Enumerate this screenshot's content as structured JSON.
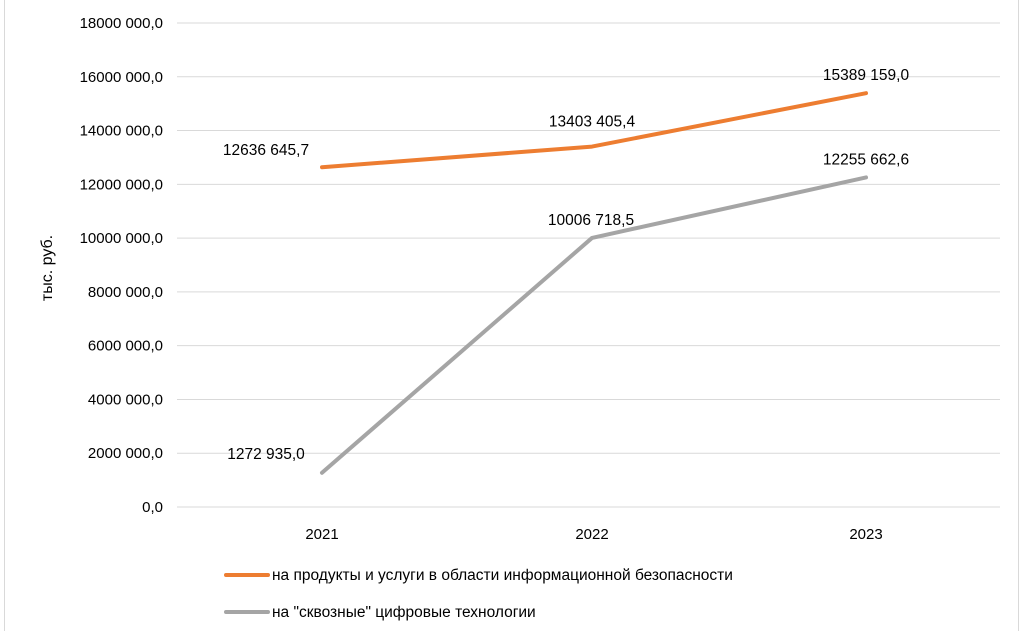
{
  "chart_data": {
    "type": "line",
    "title": "",
    "ylabel": "тыс. руб.",
    "xlabel": "",
    "categories": [
      "2021",
      "2022",
      "2023"
    ],
    "ylim": [
      0,
      18000000
    ],
    "yticks": [
      0,
      2000000,
      4000000,
      6000000,
      8000000,
      10000000,
      12000000,
      14000000,
      16000000,
      18000000
    ],
    "ytick_labels": [
      "0,0",
      "2000 000,0",
      "4000 000,0",
      "6000 000,0",
      "8000 000,0",
      "10000 000,0",
      "12000 000,0",
      "14000 000,0",
      "16000 000,0",
      "18000 000,0"
    ],
    "grid": true,
    "legend_position": "bottom",
    "series": [
      {
        "name": "на продукты и услуги в области информационной безопасности",
        "color": "#ed7d31",
        "values": [
          12636645.7,
          13403405.4,
          15389159.0
        ],
        "labels": [
          "12636 645,7",
          "13403 405,4",
          "15389 159,0"
        ]
      },
      {
        "name": "на \"сквозные\" цифровые технологии",
        "color": "#a5a5a5",
        "values": [
          1272935.0,
          10006718.5,
          12255662.6
        ],
        "labels": [
          "1272 935,0",
          "10006 718,5",
          "12255 662,6"
        ]
      }
    ]
  }
}
